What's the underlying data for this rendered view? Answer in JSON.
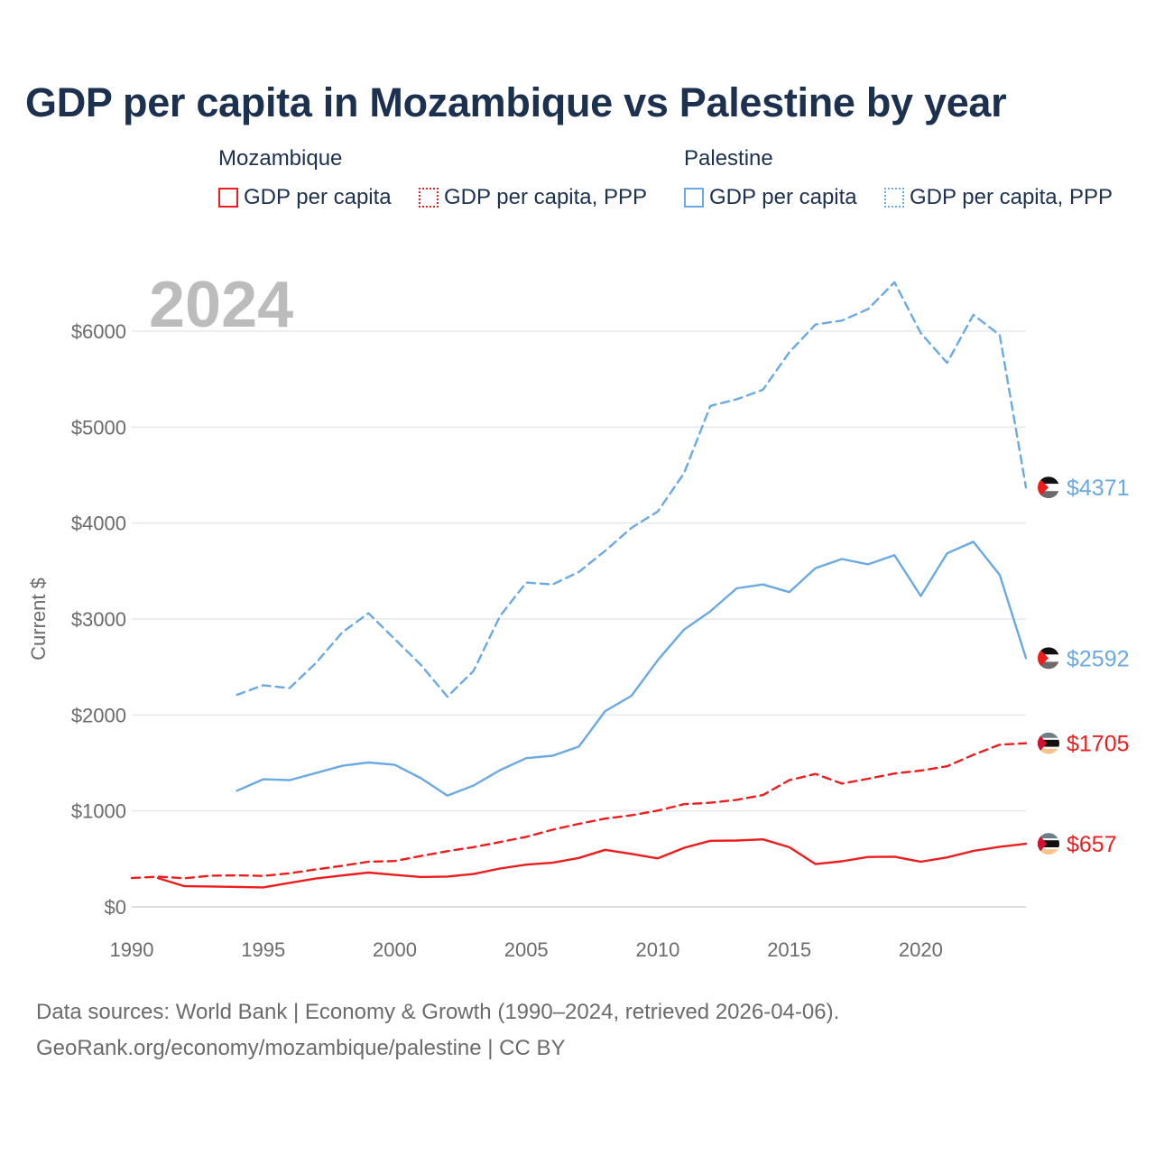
{
  "title": "GDP per capita in Mozambique vs Palestine by year",
  "legend": {
    "groups": [
      {
        "name": "Mozambique",
        "items": [
          "GDP per capita",
          "GDP per capita, PPP"
        ]
      },
      {
        "name": "Palestine",
        "items": [
          "GDP per capita",
          "GDP per capita, PPP"
        ]
      }
    ]
  },
  "colors": {
    "mozambique": "#ee1c1c",
    "palestine": "#6aa9e3"
  },
  "footer": {
    "line1": "Data sources: World Bank | Economy & Growth (1990–2024, retrieved 2026-04-06).",
    "line2": "GeoRank.org/economy/mozambique/palestine | CC BY"
  },
  "chart_data": {
    "type": "line",
    "year_watermark": "2024",
    "ylabel": "Current $",
    "xlim": [
      1990,
      2024
    ],
    "ylim": [
      0,
      6000
    ],
    "y_ticks": [
      0,
      1000,
      2000,
      3000,
      4000,
      5000,
      6000
    ],
    "y_tick_labels": [
      "$0",
      "$1000",
      "$2000",
      "$3000",
      "$4000",
      "$5000",
      "$6000"
    ],
    "x_ticks": [
      1990,
      1995,
      2000,
      2005,
      2010,
      2015,
      2020
    ],
    "x_tick_labels": [
      "1990",
      "1995",
      "2000",
      "2005",
      "2010",
      "2015",
      "2020"
    ],
    "series": [
      {
        "name": "Mozambique GDP per capita",
        "country": "mozambique",
        "dashed": false,
        "start_year": 1991,
        "values": [
          300,
          215,
          213,
          208,
          203,
          250,
          295,
          327,
          357,
          333,
          311,
          316,
          342,
          400,
          440,
          460,
          510,
          594,
          552,
          505,
          615,
          688,
          691,
          703,
          622,
          446,
          475,
          520,
          523,
          470,
          515,
          583,
          626,
          657
        ],
        "end_label": "$657"
      },
      {
        "name": "Mozambique GDP per capita, PPP",
        "country": "mozambique",
        "dashed": true,
        "start_year": 1990,
        "values": [
          300,
          315,
          298,
          324,
          328,
          323,
          350,
          390,
          428,
          470,
          478,
          530,
          580,
          623,
          675,
          730,
          804,
          865,
          920,
          955,
          1003,
          1070,
          1085,
          1115,
          1165,
          1320,
          1385,
          1285,
          1335,
          1390,
          1420,
          1465,
          1585,
          1690,
          1705
        ],
        "end_label": "$1705"
      },
      {
        "name": "Palestine GDP per capita",
        "country": "palestine",
        "dashed": false,
        "start_year": 1994,
        "values": [
          1210,
          1330,
          1320,
          1395,
          1470,
          1505,
          1480,
          1340,
          1160,
          1265,
          1425,
          1550,
          1575,
          1670,
          2040,
          2200,
          2570,
          2890,
          3080,
          3320,
          3360,
          3280,
          3530,
          3625,
          3570,
          3665,
          3240,
          3685,
          3805,
          3460,
          2592
        ],
        "end_label": "$2592"
      },
      {
        "name": "Palestine GDP per capita, PPP",
        "country": "palestine",
        "dashed": true,
        "start_year": 1994,
        "values": [
          2210,
          2310,
          2280,
          2540,
          2860,
          3060,
          2790,
          2520,
          2190,
          2460,
          3030,
          3380,
          3360,
          3490,
          3710,
          3950,
          4120,
          4520,
          5220,
          5290,
          5390,
          5780,
          6070,
          6110,
          6230,
          6510,
          5980,
          5670,
          6170,
          5960,
          4371
        ],
        "end_label": "$4371"
      }
    ]
  }
}
